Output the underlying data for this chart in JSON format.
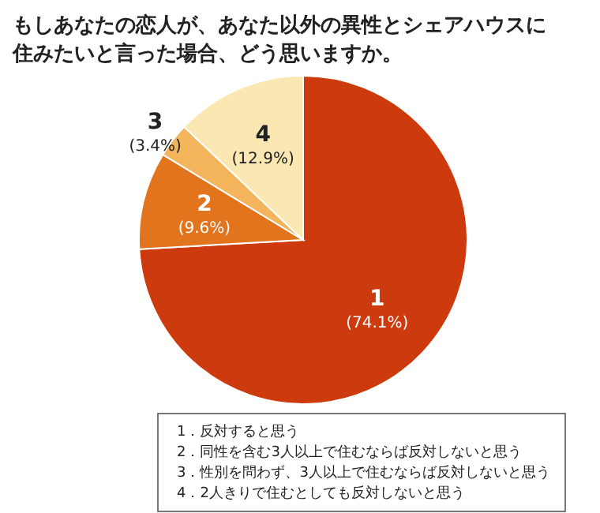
{
  "chart_data": {
    "type": "pie",
    "title": "もしあなたの恋人が、あなた以外の異性とシェアハウスに住みたいと言った場合、どう思いますか。",
    "categories": [
      "1",
      "2",
      "3",
      "4"
    ],
    "values": [
      74.1,
      9.6,
      3.4,
      12.9
    ],
    "value_labels": [
      "(74.1%)",
      "(9.6%)",
      "(3.4%)",
      "(12.9%)"
    ],
    "colors": [
      "#cc3a0e",
      "#e2741e",
      "#f3b45c",
      "#fbe7b2"
    ],
    "annotations": [
      "1．反対すると思う",
      "2．同性を含む3人以上で住むならば反対しないと思う",
      "3．性別を問わず、3人以上で住むならば反対しないと思う",
      "4．2人きりで住むとしても反対しないと思う"
    ]
  }
}
